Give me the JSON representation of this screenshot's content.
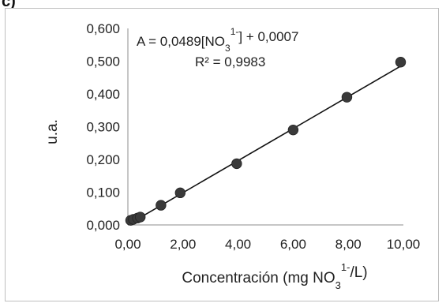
{
  "panel_label": "c)",
  "chart_data": {
    "type": "scatter",
    "title": "",
    "xlabel": {
      "main": "Concentración (mg NO",
      "sub": "3",
      "sup": "1-",
      "tail": "/L)"
    },
    "ylabel": "u.a.",
    "xlim": [
      0,
      10
    ],
    "ylim": [
      0,
      0.6
    ],
    "x_ticks": [
      "0,00",
      "2,00",
      "4,00",
      "6,00",
      "8,00",
      "10,00"
    ],
    "x_tick_values": [
      0,
      2,
      4,
      6,
      8,
      10
    ],
    "y_ticks": [
      "0,000",
      "0,100",
      "0,200",
      "0,300",
      "0,400",
      "0,500",
      "0,600"
    ],
    "y_tick_values": [
      0,
      0.1,
      0.2,
      0.3,
      0.4,
      0.5,
      0.6
    ],
    "grid": false,
    "points": [
      {
        "x": 0.1,
        "y": 0.014
      },
      {
        "x": 0.2,
        "y": 0.017
      },
      {
        "x": 0.35,
        "y": 0.021
      },
      {
        "x": 0.45,
        "y": 0.024
      },
      {
        "x": 1.2,
        "y": 0.06
      },
      {
        "x": 1.9,
        "y": 0.098
      },
      {
        "x": 3.95,
        "y": 0.187
      },
      {
        "x": 6.0,
        "y": 0.29
      },
      {
        "x": 7.95,
        "y": 0.39
      },
      {
        "x": 9.9,
        "y": 0.497
      }
    ],
    "trendline": {
      "slope": 0.0489,
      "intercept": 0.0007,
      "x_start": 0.0,
      "x_end": 9.95
    },
    "equation": {
      "pre": "A = 0,0489[NO",
      "sub": "3",
      "sup": "1-",
      "post": "] + 0,0007"
    },
    "r_squared": "R² = 0,9983",
    "marker_color": "#3a3a3a",
    "line_color": "#111111"
  }
}
